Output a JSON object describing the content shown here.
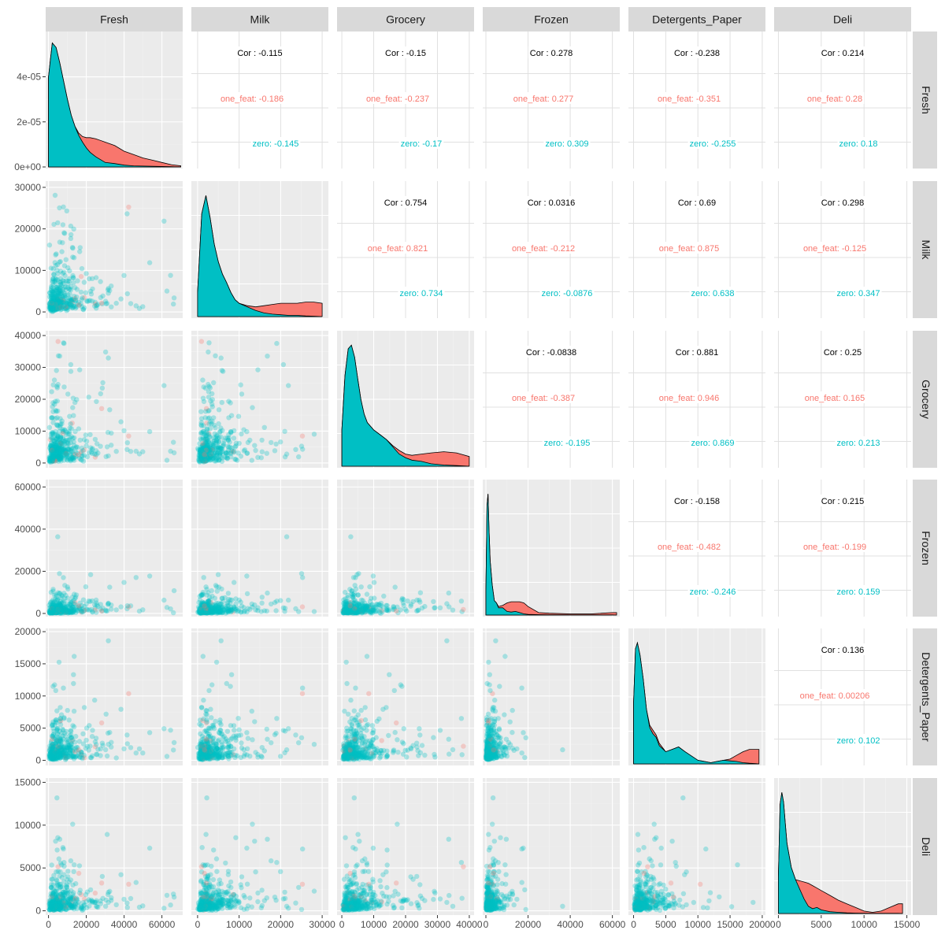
{
  "chart_data": {
    "type": "scatter-matrix",
    "variables": [
      "Fresh",
      "Milk",
      "Grocery",
      "Frozen",
      "Detergents_Paper",
      "Deli"
    ],
    "groups": [
      {
        "name": "one_feat",
        "color": "#F8766D"
      },
      {
        "name": "zero",
        "color": "#00BFC4"
      }
    ],
    "correlation_label": "Cor",
    "axes": {
      "Fresh": {
        "lim": [
          -1500,
          71000
        ],
        "ticks": [
          0,
          20000,
          40000,
          60000
        ]
      },
      "Milk": {
        "lim": [
          -1500,
          31500
        ],
        "ticks": [
          0,
          10000,
          20000,
          30000
        ]
      },
      "Grocery": {
        "lim": [
          -1500,
          41500
        ],
        "ticks": [
          0,
          10000,
          20000,
          30000,
          40000
        ]
      },
      "Frozen": {
        "lim": [
          -1500,
          63500
        ],
        "ticks": [
          0,
          20000,
          40000,
          60000
        ]
      },
      "Detergents_Paper": {
        "lim": [
          -800,
          20500
        ],
        "ticks": [
          0,
          5000,
          10000,
          15000,
          20000
        ]
      },
      "Deli": {
        "lim": [
          -500,
          15500
        ],
        "ticks": [
          0,
          5000,
          10000,
          15000
        ]
      }
    },
    "diagonal_axis_ticks": {
      "Fresh": [
        "0e+00",
        "2e-05",
        "4e-05"
      ]
    },
    "correlations": [
      {
        "row": "Fresh",
        "col": "Milk",
        "cor": "-0.115",
        "one_feat": "-0.186",
        "zero": "-0.145"
      },
      {
        "row": "Fresh",
        "col": "Grocery",
        "cor": "-0.15",
        "one_feat": "-0.237",
        "zero": "-0.17"
      },
      {
        "row": "Fresh",
        "col": "Frozen",
        "cor": "0.278",
        "one_feat": "0.277",
        "zero": "0.309"
      },
      {
        "row": "Fresh",
        "col": "Detergents_Paper",
        "cor": "-0.238",
        "one_feat": "-0.351",
        "zero": "-0.255"
      },
      {
        "row": "Fresh",
        "col": "Deli",
        "cor": "0.214",
        "one_feat": "0.28",
        "zero": "0.18"
      },
      {
        "row": "Milk",
        "col": "Grocery",
        "cor": "0.754",
        "one_feat": "0.821",
        "zero": "0.734"
      },
      {
        "row": "Milk",
        "col": "Frozen",
        "cor": "0.0316",
        "one_feat": "-0.212",
        "zero": "-0.0876"
      },
      {
        "row": "Milk",
        "col": "Detergents_Paper",
        "cor": "0.69",
        "one_feat": "0.875",
        "zero": "0.638"
      },
      {
        "row": "Milk",
        "col": "Deli",
        "cor": "0.298",
        "one_feat": "-0.125",
        "zero": "0.347"
      },
      {
        "row": "Grocery",
        "col": "Frozen",
        "cor": "-0.0838",
        "one_feat": "-0.387",
        "zero": "-0.195"
      },
      {
        "row": "Grocery",
        "col": "Detergents_Paper",
        "cor": "0.881",
        "one_feat": "0.946",
        "zero": "0.869"
      },
      {
        "row": "Grocery",
        "col": "Deli",
        "cor": "0.25",
        "one_feat": "0.165",
        "zero": "0.213"
      },
      {
        "row": "Frozen",
        "col": "Detergents_Paper",
        "cor": "-0.158",
        "one_feat": "-0.482",
        "zero": "-0.246"
      },
      {
        "row": "Frozen",
        "col": "Deli",
        "cor": "0.215",
        "one_feat": "-0.199",
        "zero": "0.159"
      },
      {
        "row": "Detergents_Paper",
        "col": "Deli",
        "cor": "0.136",
        "one_feat": "0.00206",
        "zero": "0.102"
      }
    ],
    "densities": {
      "Fresh": {
        "x": [
          0,
          2000,
          4000,
          6000,
          8000,
          10000,
          12000,
          14000,
          16000,
          18000,
          20000,
          22000,
          25000,
          30000,
          35000,
          40000,
          45000,
          50000,
          55000,
          60000,
          65000,
          70000
        ],
        "zero": [
          4e-05,
          5.5e-05,
          5.3e-05,
          4.6e-05,
          3.8e-05,
          3e-05,
          2.3e-05,
          1.8e-05,
          1.4e-05,
          1.1e-05,
          8.5e-06,
          6.5e-06,
          4.5e-06,
          2e-06,
          1.5e-06,
          8e-07,
          5e-07,
          4e-07,
          3e-07,
          2e-07,
          1e-07,
          0
        ],
        "one_feat": [
          4e-05,
          5.5e-05,
          5.3e-05,
          4.6e-05,
          3.8e-05,
          3e-05,
          2.3e-05,
          1.8e-05,
          1.5e-05,
          1.35e-05,
          1.3e-05,
          1.3e-05,
          1.25e-05,
          1.1e-05,
          9.5e-06,
          7e-06,
          5.5e-06,
          4e-06,
          3e-06,
          2e-06,
          1e-06,
          5e-07
        ]
      },
      "Milk": {
        "x": [
          0,
          1000,
          2000,
          3000,
          4000,
          5000,
          6000,
          7000,
          8000,
          9000,
          10000,
          12000,
          14000,
          16000,
          18000,
          20000,
          22000,
          24000,
          26000,
          28000,
          30000
        ],
        "zero": [
          0.2,
          0.85,
          1.0,
          0.82,
          0.6,
          0.45,
          0.35,
          0.28,
          0.2,
          0.14,
          0.11,
          0.08,
          0.05,
          0.03,
          0.02,
          0.015,
          0.01,
          0.01,
          0.005,
          0.003,
          0
        ],
        "one_feat": [
          0.2,
          0.85,
          1.0,
          0.82,
          0.6,
          0.45,
          0.35,
          0.28,
          0.2,
          0.14,
          0.11,
          0.09,
          0.08,
          0.09,
          0.1,
          0.11,
          0.11,
          0.11,
          0.12,
          0.12,
          0.11
        ]
      },
      "Grocery": {
        "x": [
          0,
          1000,
          2000,
          3000,
          4000,
          5000,
          6000,
          7000,
          8000,
          10000,
          12000,
          14000,
          16000,
          18000,
          20000,
          22000,
          25000,
          28000,
          32000,
          36000,
          40000
        ],
        "zero": [
          0.3,
          0.75,
          0.97,
          1.0,
          0.9,
          0.72,
          0.55,
          0.43,
          0.36,
          0.3,
          0.26,
          0.22,
          0.16,
          0.1,
          0.07,
          0.05,
          0.04,
          0.02,
          0.01,
          0.005,
          0
        ],
        "one_feat": [
          0.3,
          0.75,
          0.97,
          1.0,
          0.9,
          0.72,
          0.55,
          0.43,
          0.36,
          0.3,
          0.26,
          0.22,
          0.17,
          0.13,
          0.1,
          0.09,
          0.1,
          0.11,
          0.12,
          0.11,
          0.08
        ]
      },
      "Frozen": {
        "x": [
          0,
          500,
          1000,
          1500,
          2000,
          3000,
          4000,
          5000,
          6000,
          8000,
          10000,
          12000,
          14000,
          16000,
          18000,
          20000,
          25000,
          30000,
          40000,
          50000,
          60000,
          62000
        ],
        "zero": [
          0.2,
          0.9,
          1.0,
          0.7,
          0.45,
          0.25,
          0.12,
          0.1,
          0.06,
          0.06,
          0.03,
          0.025,
          0.03,
          0.02,
          0.01,
          0.005,
          0.003,
          0.002,
          0.001,
          0.001,
          0.001,
          0
        ],
        "one_feat": [
          0.2,
          0.9,
          1.0,
          0.7,
          0.45,
          0.25,
          0.12,
          0.1,
          0.07,
          0.08,
          0.1,
          0.11,
          0.11,
          0.11,
          0.1,
          0.07,
          0.02,
          0.015,
          0.01,
          0.01,
          0.02,
          0.02
        ]
      },
      "Detergents_Paper": {
        "x": [
          0,
          300,
          600,
          1000,
          1500,
          2000,
          2500,
          3000,
          3500,
          4000,
          5000,
          6000,
          7000,
          8000,
          10000,
          12000,
          13000,
          14000,
          15000,
          16000,
          17000,
          18000,
          19000,
          19500
        ],
        "zero": [
          0.5,
          0.95,
          1.0,
          0.9,
          0.7,
          0.45,
          0.3,
          0.25,
          0.22,
          0.15,
          0.1,
          0.12,
          0.14,
          0.1,
          0.03,
          0.01,
          0.02,
          0.03,
          0.025,
          0.02,
          0.01,
          0.005,
          0.002,
          0
        ],
        "one_feat": [
          0.5,
          0.95,
          1.0,
          0.9,
          0.7,
          0.45,
          0.32,
          0.28,
          0.24,
          0.17,
          0.1,
          0.12,
          0.14,
          0.1,
          0.03,
          0.01,
          0.02,
          0.03,
          0.04,
          0.07,
          0.1,
          0.12,
          0.12,
          0.12
        ]
      },
      "Deli": {
        "x": [
          0,
          200,
          400,
          600,
          800,
          1000,
          1500,
          2000,
          2500,
          3000,
          3500,
          4000,
          4500,
          5000,
          6000,
          7000,
          8000,
          9000,
          10000,
          11000,
          12000,
          13000,
          14000,
          14500
        ],
        "zero": [
          0.3,
          0.9,
          1.0,
          0.92,
          0.75,
          0.58,
          0.38,
          0.28,
          0.2,
          0.12,
          0.06,
          0.04,
          0.05,
          0.03,
          0.015,
          0.01,
          0.005,
          0.003,
          0.002,
          0.001,
          0.001,
          0.001,
          0.001,
          0
        ],
        "one_feat": [
          0.3,
          0.9,
          1.0,
          0.92,
          0.75,
          0.58,
          0.38,
          0.28,
          0.27,
          0.26,
          0.25,
          0.23,
          0.21,
          0.19,
          0.15,
          0.11,
          0.08,
          0.05,
          0.02,
          0.01,
          0.02,
          0.05,
          0.08,
          0.08
        ]
      }
    }
  }
}
